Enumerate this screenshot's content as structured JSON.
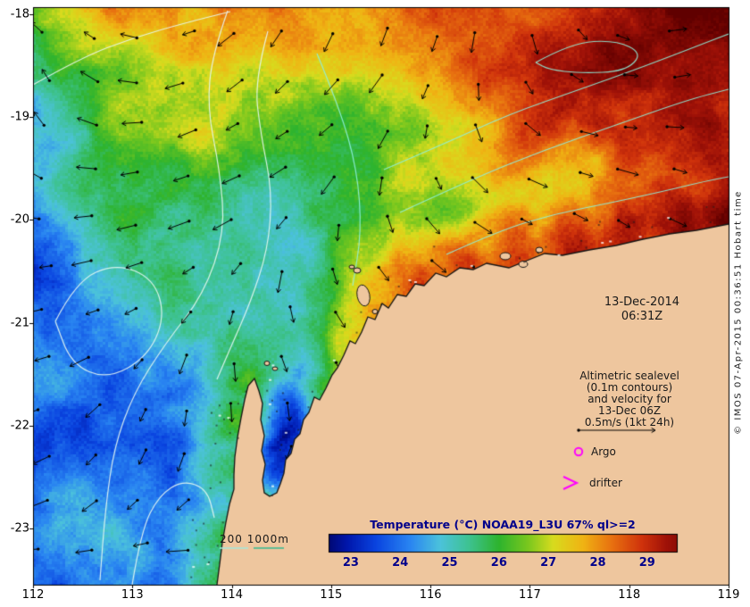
{
  "axes": {
    "x_ticks": [
      "112",
      "113",
      "114",
      "115",
      "116",
      "117",
      "118",
      "119"
    ],
    "y_ticks": [
      "-18",
      "-19",
      "-20",
      "-21",
      "-22",
      "-23"
    ]
  },
  "annotations": {
    "date_line1": "13-Dec-2014",
    "date_line2": "06:31Z",
    "altimetry_lines": [
      "Altimetric sealevel",
      "(0.1m contours)",
      "and velocity for",
      "13-Dec 06Z",
      "0.5m/s (1kt 24h)"
    ],
    "argo_label": "Argo",
    "drifter_label": "drifter",
    "bathymetry_legend": "200  1000m",
    "watermark": "© IMOS 07-Apr-2015 00:36:51  Hobart time"
  },
  "colorbar": {
    "title": "Temperature (°C) NOAA19_L3U 67% ql>=2",
    "tick_labels": [
      "23",
      "24",
      "25",
      "26",
      "27",
      "28",
      "29"
    ],
    "range": [
      22.55,
      29.6
    ]
  },
  "colors": {
    "background": "#FFFFFF",
    "land": "#EEC69E",
    "coast_outline": "#151515",
    "contour_altimetry": "#8FF0DC",
    "contour_bathymetry": "#E8F8F2",
    "arrow": "#000000",
    "marker_magenta": "#FF00FF",
    "title_navy": "#00008B",
    "frame": "#000000",
    "bathy_legend_line_200": "#A8E8D8",
    "bathy_legend_line_1000": "#30B890"
  },
  "colormap": {
    "stops": [
      [
        22.3,
        "#00004E"
      ],
      [
        22.9,
        "#0016AA"
      ],
      [
        23.5,
        "#0A44E0"
      ],
      [
        24.2,
        "#2A86F2"
      ],
      [
        24.8,
        "#4CC2DC"
      ],
      [
        25.4,
        "#3EC290"
      ],
      [
        26.0,
        "#2EB42E"
      ],
      [
        26.6,
        "#7CC81E"
      ],
      [
        27.1,
        "#D8DC1E"
      ],
      [
        27.7,
        "#F0B414"
      ],
      [
        28.3,
        "#E87010"
      ],
      [
        28.9,
        "#D0330C"
      ],
      [
        29.4,
        "#A01208"
      ],
      [
        30.2,
        "#600000"
      ]
    ]
  }
}
